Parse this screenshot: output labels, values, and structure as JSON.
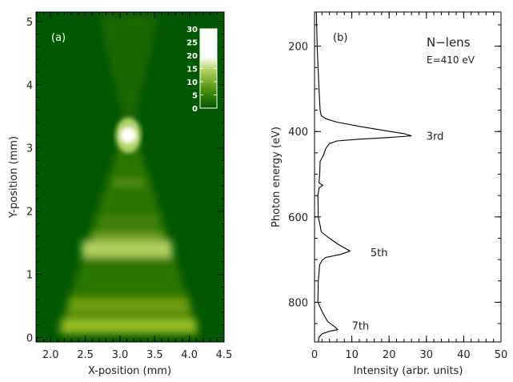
{
  "chart_data": [
    {
      "type": "heatmap",
      "panel_label": "(a)",
      "xlabel": "X-position (mm)",
      "ylabel": "Y-position (mm)",
      "xlim": [
        1.79,
        4.5
      ],
      "ylim": [
        -0.07,
        5.15
      ],
      "xticks": [
        "2.0",
        "2.5",
        "3.0",
        "3.5",
        "4.0",
        "4.5"
      ],
      "xtick_values": [
        2.0,
        2.5,
        3.0,
        3.5,
        4.0,
        4.5
      ],
      "yticks": [
        "0",
        "1",
        "2",
        "3",
        "4",
        "5"
      ],
      "ytick_values": [
        0,
        1,
        2,
        3,
        4,
        5
      ],
      "colorbar": {
        "ticks": [
          "0",
          "5",
          "10",
          "15",
          "20",
          "25",
          "30"
        ],
        "tick_values": [
          0,
          5,
          10,
          15,
          20,
          25,
          30
        ],
        "range": [
          0,
          30
        ],
        "colors": [
          "#005500",
          "#3c8a00",
          "#a8c850",
          "#ffffff"
        ]
      },
      "features": {
        "focus_spot": {
          "x": 3.12,
          "y": 3.2
        },
        "bright_bands_y": [
          0.18,
          0.5,
          1.4,
          1.85,
          2.45
        ]
      },
      "colors": {
        "background": "#005800",
        "cone": "#2b7400",
        "band": "#a6c848",
        "spot": "#ffffff"
      }
    },
    {
      "type": "line",
      "panel_label": "(b)",
      "title_lines": [
        "N−lens",
        "E=410 eV"
      ],
      "xlabel": "Intensity (arbr. units)",
      "ylabel": "Photon energy (eV)",
      "xlim": [
        0,
        50
      ],
      "ylim": [
        893,
        120
      ],
      "xticks": [
        "0",
        "10",
        "20",
        "30",
        "40",
        "50"
      ],
      "xtick_values": [
        0,
        10,
        20,
        30,
        40,
        50
      ],
      "yticks": [
        "200",
        "400",
        "600",
        "800"
      ],
      "ytick_values": [
        200,
        400,
        600,
        800
      ],
      "annotations": [
        {
          "text": "3rd",
          "x": 30,
          "y": 410
        },
        {
          "text": "5th",
          "x": 15,
          "y": 683
        },
        {
          "text": "7th",
          "x": 10,
          "y": 855
        }
      ],
      "series": [
        {
          "name": "intensity",
          "energy": [
            120,
            200,
            300,
            350,
            363,
            370,
            378,
            388,
            398,
            405,
            410,
            414,
            418,
            422,
            428,
            440,
            455,
            470,
            500,
            520,
            526,
            532,
            550,
            600,
            620,
            635,
            650,
            665,
            680,
            688,
            695,
            702,
            712,
            750,
            800,
            825,
            845,
            858,
            864,
            868,
            874,
            882,
            893
          ],
          "intensity": [
            0.5,
            0.7,
            1.2,
            1.5,
            1.8,
            3,
            6,
            12,
            19,
            24,
            26,
            20,
            12,
            6,
            4,
            3,
            2.4,
            1.5,
            1.4,
            1.2,
            2.2,
            1.2,
            0.9,
            1,
            1.5,
            1.8,
            4,
            6.5,
            9.5,
            7,
            3,
            2,
            1.4,
            1,
            0.9,
            2.2,
            3.5,
            5.5,
            6.2,
            4,
            2,
            1.2,
            1
          ]
        }
      ]
    }
  ]
}
